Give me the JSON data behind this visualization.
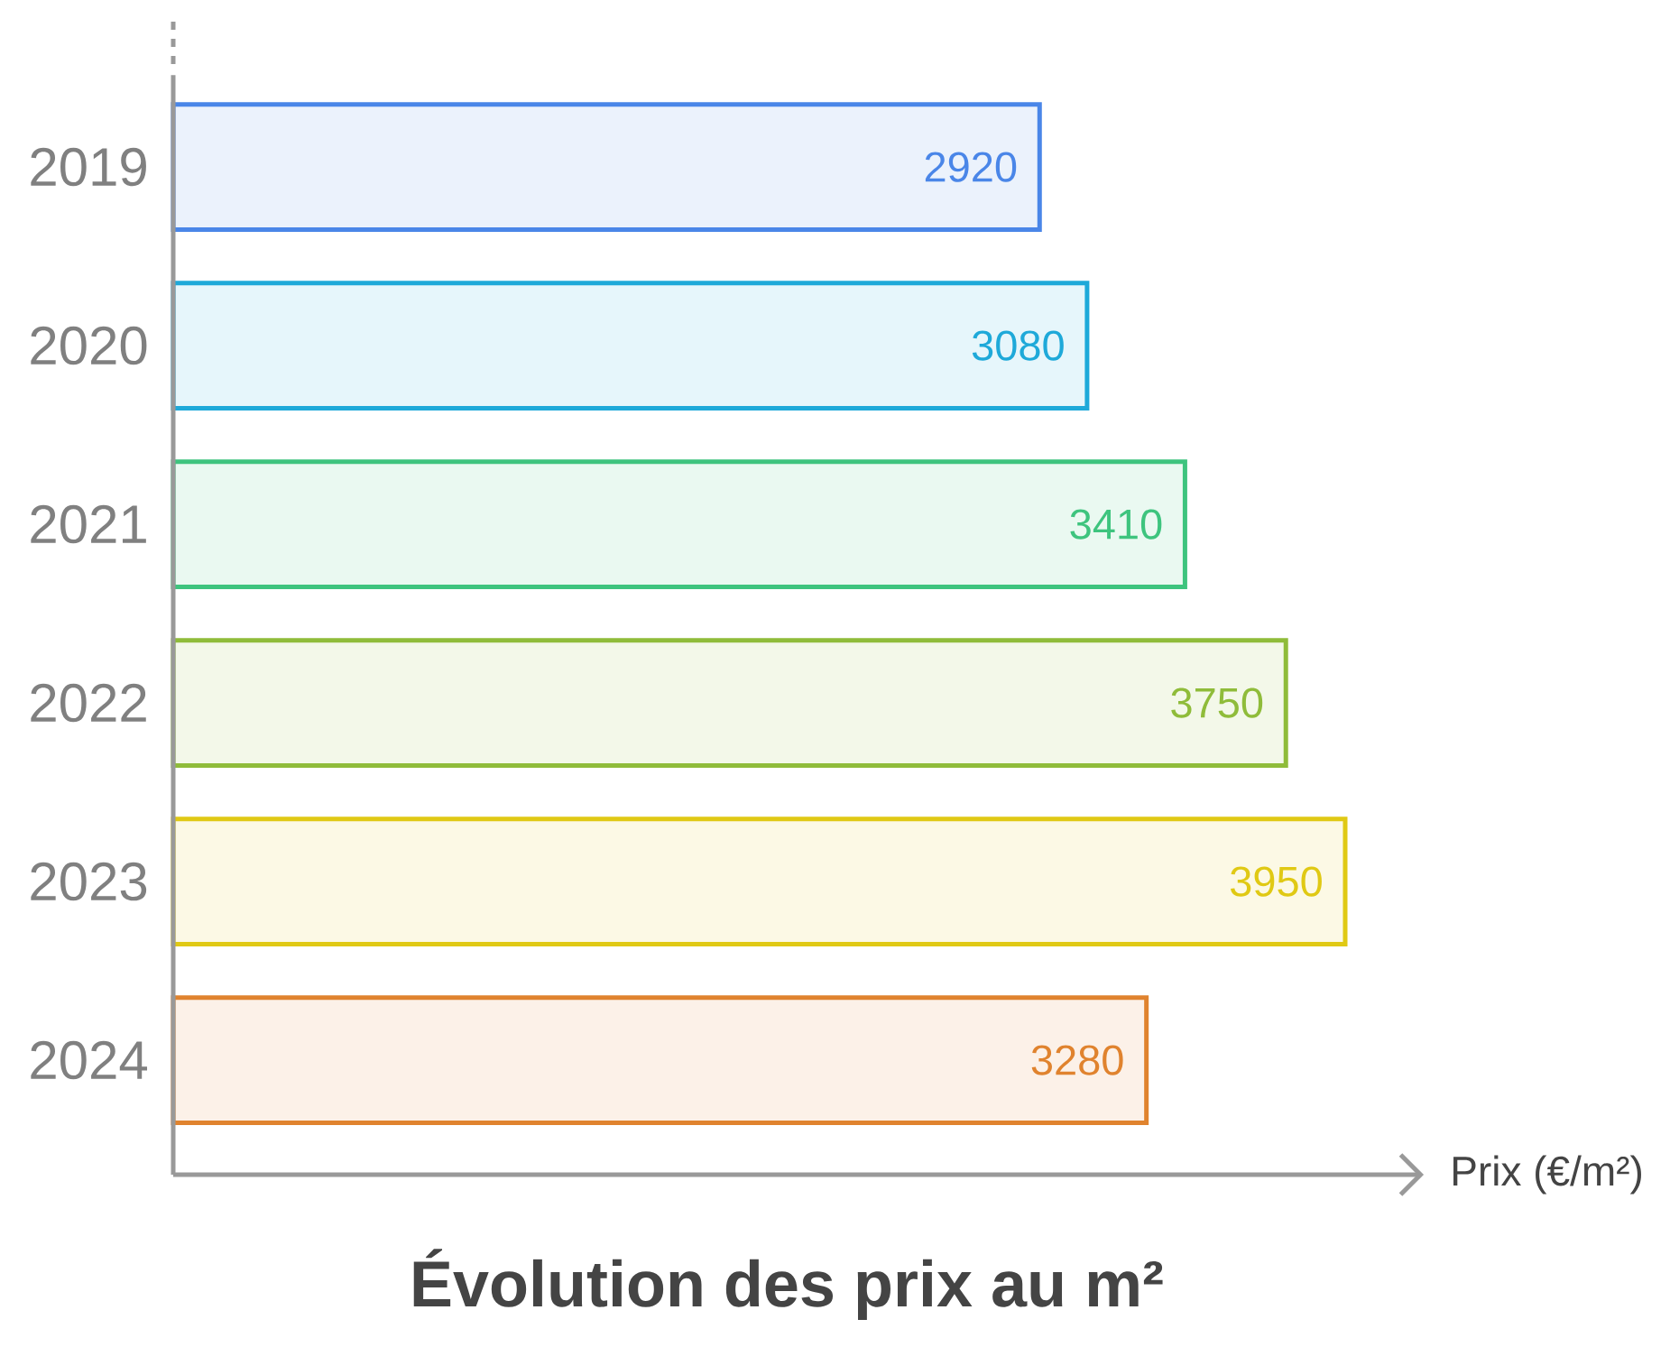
{
  "chart_data": {
    "type": "bar",
    "orientation": "horizontal",
    "title": "Évolution des prix au m²",
    "xlabel": "Prix (€/m²)",
    "categories": [
      "2019",
      "2020",
      "2021",
      "2022",
      "2023",
      "2024"
    ],
    "values": [
      2920,
      3080,
      3410,
      3750,
      3950,
      3280
    ],
    "colors": [
      "#4a86e8",
      "#1ea9d9",
      "#3ec47e",
      "#8fbc3a",
      "#e0c914",
      "#e0832e"
    ],
    "data_labels": true
  }
}
